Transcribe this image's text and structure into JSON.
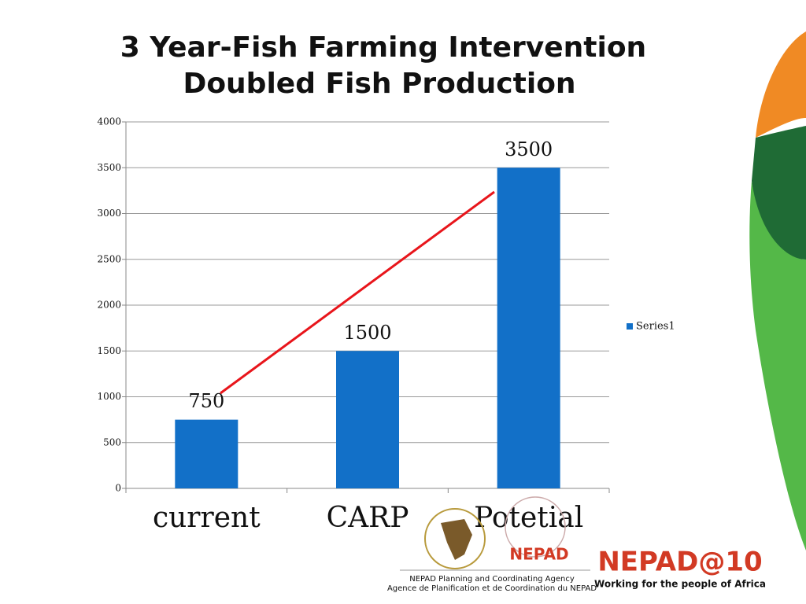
{
  "chart_data": {
    "type": "bar",
    "title": [
      "3 Year-Fish Farming Intervention",
      "Doubled Fish Production"
    ],
    "categories": [
      "current",
      "CARP",
      "Potetial"
    ],
    "series": [
      {
        "name": "Series1",
        "color": "#1270c8",
        "values": [
          750,
          1500,
          3500
        ]
      }
    ],
    "ylim": [
      0,
      4000
    ],
    "yticks": [
      0,
      500,
      1000,
      1500,
      2000,
      2500,
      3000,
      3500,
      4000
    ],
    "grid": true,
    "legend": "right"
  },
  "footer": {
    "logo": "NEPAD",
    "agency": "NEPAD Planning and Coordinating Agency",
    "agency_fr": "Agence de Planification et de Coordination du NEPAD",
    "brand": "NEPAD@10",
    "slogan": "Working for the people of Africa"
  }
}
